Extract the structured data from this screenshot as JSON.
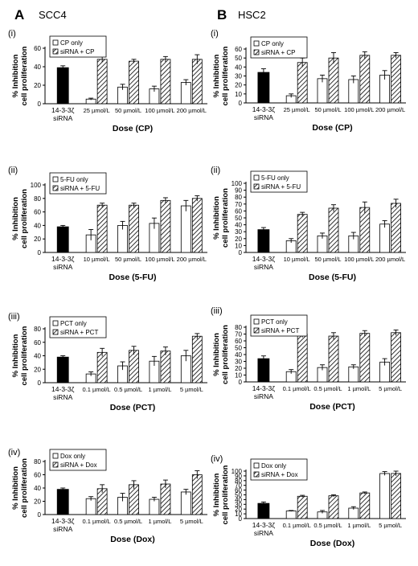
{
  "figure": {
    "panel_A": {
      "letter": "A",
      "name": "SCC4"
    },
    "panel_B": {
      "letter": "B",
      "name": "HSC2"
    }
  },
  "colors": {
    "bar_solid": "#000000",
    "bar_open": "#ffffff",
    "hatch": "#000000"
  },
  "chart_data": [
    {
      "type": "bar",
      "panel": "A",
      "label": "(i)",
      "ylabel": "% Inhibition cell proliferation",
      "xlabel": "Dose (CP)",
      "ylim": [
        0,
        60
      ],
      "yticks": [
        0,
        20,
        40,
        60
      ],
      "control": {
        "label": [
          "14-3-3ζ",
          "siRNA"
        ],
        "value": 39,
        "error": 2
      },
      "categories": [
        "25 µmol/L",
        "50 µmol/L",
        "100 µmol/L",
        "200 µmol/L"
      ],
      "legend": [
        "CP only",
        "siRNA + CP"
      ],
      "series": [
        {
          "name": "CP only",
          "values": [
            5,
            18,
            16,
            23
          ],
          "errors": [
            1,
            3,
            3,
            3
          ]
        },
        {
          "name": "siRNA + CP",
          "values": [
            48,
            46,
            48,
            48
          ],
          "errors": [
            3,
            2,
            3,
            5
          ]
        }
      ]
    },
    {
      "type": "bar",
      "panel": "A",
      "label": "(ii)",
      "ylabel": "% Inhibition cell proliferation",
      "xlabel": "Dose (5-FU)",
      "ylim": [
        0,
        100
      ],
      "yticks": [
        0,
        20,
        40,
        60,
        80,
        100
      ],
      "control": {
        "label": [
          "14-3-3ζ",
          "siRNA"
        ],
        "value": 38,
        "error": 2
      },
      "categories": [
        "10 µmol/L",
        "50 µmol/L",
        "100 µmol/L",
        "200 µmol/L"
      ],
      "legend": [
        "5-FU only",
        "siRNA + 5-FU"
      ],
      "series": [
        {
          "name": "5-FU only",
          "values": [
            26,
            40,
            43,
            69
          ],
          "errors": [
            8,
            6,
            8,
            8
          ]
        },
        {
          "name": "siRNA + 5-FU",
          "values": [
            70,
            70,
            77,
            80
          ],
          "errors": [
            3,
            3,
            4,
            4
          ]
        }
      ]
    },
    {
      "type": "bar",
      "panel": "A",
      "label": "(iii)",
      "ylabel": "% Inhibition cell proliferation",
      "xlabel": "Dose (PCT)",
      "ylim": [
        0,
        80
      ],
      "yticks": [
        0,
        20,
        40,
        60,
        80
      ],
      "control": {
        "label": [
          "14-3-3ζ",
          "siRNA"
        ],
        "value": 38,
        "error": 2
      },
      "categories": [
        "0.1 µmol/L",
        "0.5 µmol/L",
        "1 µmol/L",
        "5 µmol/L"
      ],
      "legend": [
        "PCT only",
        "siRNA + PCT"
      ],
      "series": [
        {
          "name": "PCT only",
          "values": [
            13,
            25,
            32,
            40
          ],
          "errors": [
            3,
            6,
            7,
            8
          ]
        },
        {
          "name": "siRNA + PCT",
          "values": [
            45,
            48,
            47,
            69
          ],
          "errors": [
            6,
            6,
            6,
            4
          ]
        }
      ]
    },
    {
      "type": "bar",
      "panel": "A",
      "label": "(iv)",
      "ylabel": "% Inhibition cell proliferation",
      "xlabel": "Dose (Dox)",
      "ylim": [
        0,
        80
      ],
      "yticks": [
        0,
        20,
        40,
        60,
        80
      ],
      "control": {
        "label": [
          "14-3-3ζ",
          "siRNA"
        ],
        "value": 38,
        "error": 2
      },
      "categories": [
        "0.1 µmol/L",
        "0.5 µmol/L",
        "1 µmol/L",
        "5 µmol/L"
      ],
      "legend": [
        "Dox only",
        "siRNA + Dox"
      ],
      "series": [
        {
          "name": "Dox only",
          "values": [
            24,
            26,
            23,
            34
          ],
          "errors": [
            3,
            6,
            3,
            4
          ]
        },
        {
          "name": "siRNA + Dox",
          "values": [
            39,
            45,
            46,
            60
          ],
          "errors": [
            6,
            6,
            6,
            6
          ]
        }
      ]
    },
    {
      "type": "bar",
      "panel": "B",
      "label": "(i)",
      "ylabel": "% Inhibition cell proliferation",
      "xlabel": "Dose (CP)",
      "ylim": [
        0,
        60
      ],
      "yticks": [
        0,
        10,
        20,
        30,
        40,
        50,
        60
      ],
      "control": {
        "label": [
          "14-3-3ζ",
          "siRNA"
        ],
        "value": 34,
        "error": 4
      },
      "categories": [
        "25 µmol/L",
        "50 µmol/L",
        "100 µmol/L",
        "200 µmol/L"
      ],
      "legend": [
        "CP only",
        "siRNA + CP"
      ],
      "series": [
        {
          "name": "CP only",
          "values": [
            8,
            27,
            26,
            31
          ],
          "errors": [
            2,
            4,
            4,
            5
          ]
        },
        {
          "name": "siRNA + CP",
          "values": [
            45,
            50,
            53,
            53
          ],
          "errors": [
            5,
            6,
            4,
            3
          ]
        }
      ]
    },
    {
      "type": "bar",
      "panel": "B",
      "label": "(ii)",
      "ylabel": "% Inhibition cell proliferation",
      "xlabel": "Dose (5-FU)",
      "ylim": [
        0,
        100
      ],
      "yticks": [
        0,
        10,
        20,
        30,
        40,
        50,
        60,
        70,
        80,
        90,
        100
      ],
      "control": {
        "label": [
          "14-3-3ζ",
          "siRNA"
        ],
        "value": 33,
        "error": 3
      },
      "categories": [
        "10 µmol/L",
        "50 µmol/L",
        "100 µmol/L",
        "200 µmol/L"
      ],
      "legend": [
        "5-FU only",
        "siRNA + 5-FU"
      ],
      "series": [
        {
          "name": "5-FU only",
          "values": [
            17,
            24,
            24,
            41
          ],
          "errors": [
            3,
            4,
            5,
            5
          ]
        },
        {
          "name": "siRNA + 5-FU",
          "values": [
            55,
            64,
            65,
            71
          ],
          "errors": [
            3,
            5,
            8,
            6
          ]
        }
      ]
    },
    {
      "type": "bar",
      "panel": "B",
      "label": "(iii)",
      "ylabel": "% Inhibition cell proliferation",
      "xlabel": "Dose (PCT)",
      "ylim": [
        0,
        80
      ],
      "yticks": [
        0,
        10,
        20,
        30,
        40,
        50,
        60,
        70,
        80
      ],
      "control": {
        "label": [
          "14-3-3ζ",
          "siRNA"
        ],
        "value": 34,
        "error": 4
      },
      "categories": [
        "0.1 µmol/L",
        "0.5 µmol/L",
        "1 µmol/L",
        "5 µmol/L"
      ],
      "legend": [
        "PCT only",
        "siRNA + PCT"
      ],
      "series": [
        {
          "name": "PCT only",
          "values": [
            15,
            21,
            22,
            29
          ],
          "errors": [
            3,
            4,
            3,
            5
          ]
        },
        {
          "name": "siRNA + PCT",
          "values": [
            70,
            67,
            71,
            72
          ],
          "errors": [
            5,
            5,
            4,
            4
          ]
        }
      ]
    },
    {
      "type": "bar",
      "panel": "B",
      "label": "(iv)",
      "ylabel": "% Inhibition cell proliferation",
      "xlabel": "Dose (Dox)",
      "ylim": [
        0,
        100
      ],
      "yticks": [
        0,
        10,
        20,
        30,
        40,
        50,
        60,
        70,
        80,
        90,
        100
      ],
      "control": {
        "label": [
          "14-3-3ζ",
          "siRNA"
        ],
        "value": 32,
        "error": 3
      },
      "categories": [
        "0.1 µmol/L",
        "0.5 µmol/L",
        "1 µmol/L",
        "5 µmol/L"
      ],
      "legend": [
        "Dox only",
        "siRNA + Dox"
      ],
      "series": [
        {
          "name": "Dox only",
          "values": [
            16,
            14,
            22,
            95
          ],
          "errors": [
            1,
            3,
            3,
            4
          ]
        },
        {
          "name": "siRNA + Dox",
          "values": [
            47,
            48,
            54,
            95
          ],
          "errors": [
            2,
            2,
            2,
            5
          ]
        }
      ]
    }
  ]
}
